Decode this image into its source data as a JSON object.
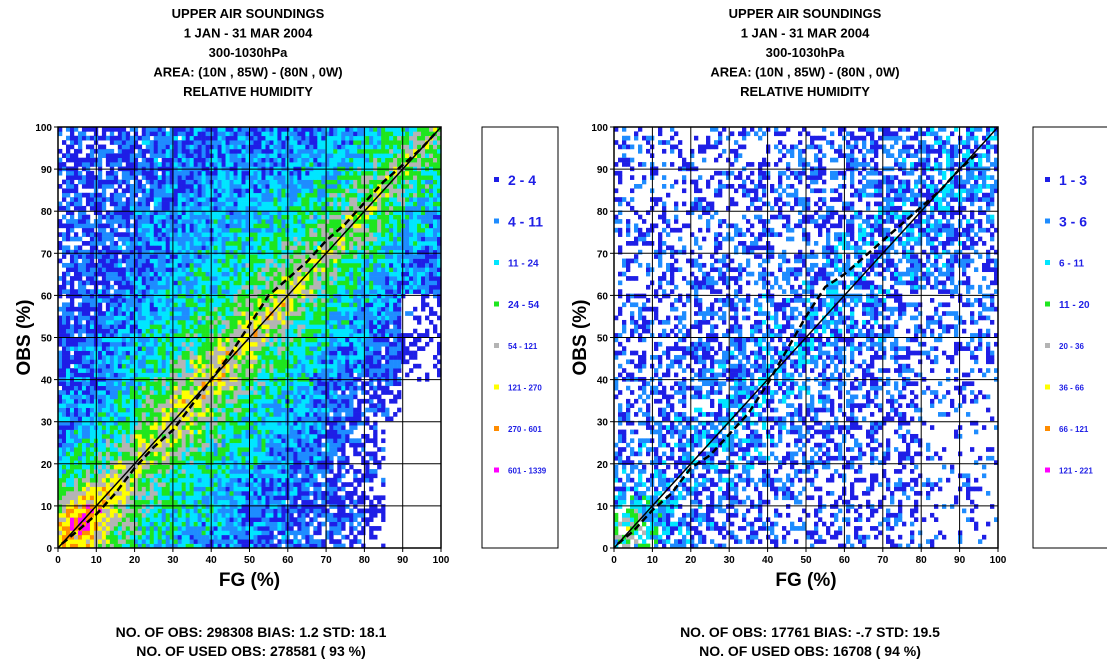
{
  "chart_data": [
    {
      "type": "heatmap",
      "title_lines": [
        "UPPER AIR SOUNDINGS",
        "1 JAN - 31 MAR 2004",
        "300-1030hPa",
        "AREA: (10N , 85W) - (80N , 0W)",
        "RELATIVE HUMIDITY"
      ],
      "xlabel": "FG (%)",
      "ylabel": "OBS (%)",
      "xlim": [
        0,
        100
      ],
      "ylim": [
        0,
        100
      ],
      "xticks": [
        "0",
        "10",
        "20",
        "30",
        "40",
        "50",
        "60",
        "70",
        "80",
        "90",
        "100"
      ],
      "yticks": [
        "0",
        "10",
        "20",
        "30",
        "40",
        "50",
        "60",
        "70",
        "80",
        "90",
        "100"
      ],
      "grid": true,
      "legend_position": "right",
      "legend": [
        {
          "label": "2 - 4",
          "color": "#1e1ee6"
        },
        {
          "label": "4 - 11",
          "color": "#1e8cff"
        },
        {
          "label": "11 - 24",
          "color": "#00e6ff"
        },
        {
          "label": "24 - 54",
          "color": "#1ee61e"
        },
        {
          "label": "54 - 121",
          "color": "#b4b4b4"
        },
        {
          "label": "121 - 270",
          "color": "#ffff00"
        },
        {
          "label": "270 - 601",
          "color": "#ff8c00"
        },
        {
          "label": "601 - 1339",
          "color": "#ff00ff"
        }
      ],
      "mean_curve": [
        [
          1,
          1
        ],
        [
          5,
          4
        ],
        [
          10,
          8
        ],
        [
          15,
          13
        ],
        [
          20,
          19
        ],
        [
          25,
          24
        ],
        [
          30,
          28
        ],
        [
          35,
          34
        ],
        [
          40,
          40
        ],
        [
          45,
          46
        ],
        [
          50,
          53
        ],
        [
          55,
          60
        ],
        [
          60,
          64
        ],
        [
          65,
          68
        ],
        [
          70,
          73
        ],
        [
          75,
          77
        ],
        [
          80,
          82
        ],
        [
          85,
          87
        ],
        [
          90,
          91
        ],
        [
          95,
          95
        ],
        [
          99,
          99
        ]
      ],
      "footer": {
        "obs_text": "NO. OF OBS: 298308 BIAS: 1.2 STD: 18.1",
        "used_text": "NO. OF USED OBS:  278581 ( 93 %)"
      }
    },
    {
      "type": "heatmap",
      "title_lines": [
        "UPPER AIR SOUNDINGS",
        "1 JAN - 31 MAR 2004",
        "300-1030hPa",
        "AREA: (10N , 85W) - (80N , 0W)",
        "RELATIVE HUMIDITY"
      ],
      "xlabel": "FG (%)",
      "ylabel": "OBS (%)",
      "xlim": [
        0,
        100
      ],
      "ylim": [
        0,
        100
      ],
      "xticks": [
        "0",
        "10",
        "20",
        "30",
        "40",
        "50",
        "60",
        "70",
        "80",
        "90",
        "100"
      ],
      "yticks": [
        "0",
        "10",
        "20",
        "30",
        "40",
        "50",
        "60",
        "70",
        "80",
        "90",
        "100"
      ],
      "grid": true,
      "legend_position": "right",
      "legend": [
        {
          "label": "1 - 3",
          "color": "#1e1ee6"
        },
        {
          "label": "3 - 6",
          "color": "#1e8cff"
        },
        {
          "label": "6 - 11",
          "color": "#00e6ff"
        },
        {
          "label": "11 - 20",
          "color": "#1ee61e"
        },
        {
          "label": "20 - 36",
          "color": "#b4b4b4"
        },
        {
          "label": "36 - 66",
          "color": "#ffff00"
        },
        {
          "label": "66 - 121",
          "color": "#ff8c00"
        },
        {
          "label": "121 - 221",
          "color": "#ff00ff"
        }
      ],
      "mean_curve": [
        [
          1,
          1
        ],
        [
          5,
          4
        ],
        [
          10,
          9
        ],
        [
          15,
          13
        ],
        [
          20,
          19
        ],
        [
          25,
          22
        ],
        [
          30,
          27
        ],
        [
          35,
          32
        ],
        [
          40,
          39
        ],
        [
          45,
          47
        ],
        [
          50,
          55
        ],
        [
          55,
          62
        ],
        [
          60,
          65
        ],
        [
          65,
          69
        ],
        [
          70,
          73
        ],
        [
          75,
          77
        ],
        [
          80,
          81
        ],
        [
          85,
          85
        ],
        [
          90,
          90
        ],
        [
          95,
          94
        ]
      ],
      "footer": {
        "obs_text": "NO. OF OBS: 17761 BIAS: -.7 STD: 19.5",
        "used_text": "NO. OF USED OBS:    16708 ( 94 %)"
      }
    }
  ]
}
